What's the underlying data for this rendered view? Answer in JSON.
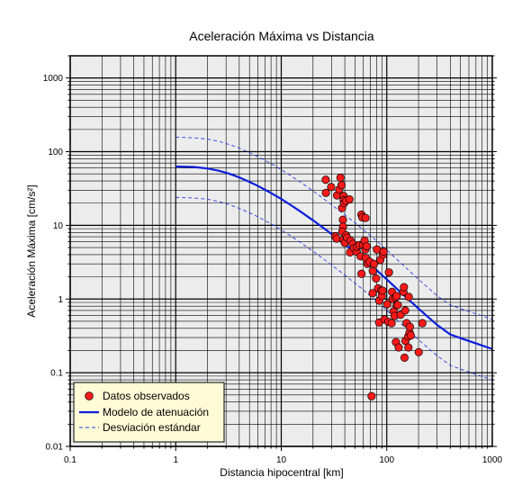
{
  "chart_data": {
    "type": "scatter",
    "title": "Aceleración Máxima vs Distancia",
    "xlabel": "Distancia hipocentral [km]",
    "ylabel": "Aceleración Máxima [cm/s²]",
    "xscale": "log",
    "yscale": "log",
    "xlim": [
      0.1,
      1000
    ],
    "ylim": [
      0.01,
      2000
    ],
    "grid": true,
    "background_color": "#ececec",
    "x_ticks": [
      {
        "value": 0.1,
        "label": "0.1"
      },
      {
        "value": 1,
        "label": "1"
      },
      {
        "value": 10,
        "label": "10"
      },
      {
        "value": 100,
        "label": "100"
      },
      {
        "value": 1000,
        "label": "1000"
      }
    ],
    "y_ticks": [
      {
        "value": 0.01,
        "label": "0.01"
      },
      {
        "value": 0.1,
        "label": "0.1"
      },
      {
        "value": 1,
        "label": "1"
      },
      {
        "value": 10,
        "label": "10"
      },
      {
        "value": 100,
        "label": "100"
      },
      {
        "value": 1000,
        "label": "1000"
      }
    ],
    "legend": {
      "placement": "bottom-left",
      "background": "#fffbd6",
      "entries": [
        {
          "label": "Datos observados",
          "kind": "marker",
          "color": "#ff1a1a"
        },
        {
          "label": "Modelo de atenuación",
          "kind": "line",
          "color": "#0a1edc"
        },
        {
          "label": "Desviación estándar",
          "kind": "dashed",
          "color": "#2a3ce6"
        }
      ]
    },
    "series": [
      {
        "name": "Datos observados",
        "kind": "scatter",
        "color": "#ff1a1a",
        "points": [
          [
            26.4,
            41.6
          ],
          [
            26.5,
            27.6
          ],
          [
            29.7,
            33.1
          ],
          [
            32.5,
            7.1
          ],
          [
            33.5,
            6.6
          ],
          [
            33.8,
            25.5
          ],
          [
            35.5,
            30.7
          ],
          [
            36.4,
            44.3
          ],
          [
            37.3,
            35.2
          ],
          [
            37.7,
            17.2
          ],
          [
            38.4,
            11.9
          ],
          [
            38.5,
            9.6
          ],
          [
            39.0,
            25.1
          ],
          [
            39.0,
            22.0
          ],
          [
            39.4,
            20.0
          ],
          [
            37.9,
            8.2
          ],
          [
            38.7,
            6.4
          ],
          [
            40.0,
            5.8
          ],
          [
            41.2,
            7.3
          ],
          [
            42.1,
            6.8
          ],
          [
            41.0,
            21.5
          ],
          [
            44.3,
            22.5
          ],
          [
            45.4,
            6.2
          ],
          [
            44.9,
            4.3
          ],
          [
            47.6,
            5.6
          ],
          [
            48.8,
            4.9
          ],
          [
            51.8,
            4.4
          ],
          [
            52.2,
            5.1
          ],
          [
            54.9,
            5.4
          ],
          [
            56.5,
            3.8
          ],
          [
            57.5,
            14.0
          ],
          [
            58.8,
            12.8
          ],
          [
            59.3,
            5.4
          ],
          [
            57.6,
            2.2
          ],
          [
            61.6,
            6.2
          ],
          [
            62.7,
            4.7
          ],
          [
            62.9,
            12.6
          ],
          [
            64.4,
            5.2
          ],
          [
            63.3,
            3.6
          ],
          [
            65.8,
            3.0
          ],
          [
            69.0,
            3.2
          ],
          [
            71.8,
            0.048
          ],
          [
            73.7,
            2.4
          ],
          [
            73.5,
            1.2
          ],
          [
            75.6,
            3.0
          ],
          [
            79.2,
            1.9
          ],
          [
            80.7,
            4.7
          ],
          [
            82.6,
            1.4
          ],
          [
            84.7,
            0.48
          ],
          [
            85.0,
            0.95
          ],
          [
            86.9,
            3.4
          ],
          [
            88.5,
            1.3
          ],
          [
            89.8,
            1.1
          ],
          [
            91.1,
            1.3
          ],
          [
            92.2,
            4.0
          ],
          [
            93.2,
            4.4
          ],
          [
            95.2,
            0.53
          ],
          [
            100.9,
            0.85
          ],
          [
            103.5,
            0.49
          ],
          [
            104.8,
            2.3
          ],
          [
            111.0,
            0.47
          ],
          [
            112.3,
            1.25
          ],
          [
            113.8,
            1.0
          ],
          [
            116.1,
            0.68
          ],
          [
            118.5,
            0.59
          ],
          [
            120.8,
            1.05
          ],
          [
            122.2,
            0.26
          ],
          [
            124.1,
            0.82
          ],
          [
            124.3,
            1.1
          ],
          [
            127.2,
            0.83
          ],
          [
            129.7,
            0.22
          ],
          [
            135.1,
            0.61
          ],
          [
            143.8,
            1.25
          ],
          [
            145.5,
            1.45
          ],
          [
            147.3,
            0.16
          ],
          [
            149.6,
            0.7
          ],
          [
            150.3,
            0.27
          ],
          [
            154.2,
            0.47
          ],
          [
            159.7,
            0.31
          ],
          [
            160.3,
            0.22
          ],
          [
            161.5,
            1.07
          ],
          [
            164.4,
            0.35
          ],
          [
            165.4,
            0.42
          ],
          [
            168.8,
            0.32
          ],
          [
            200.7,
            0.19
          ],
          [
            217.3,
            0.47
          ]
        ]
      },
      {
        "name": "Modelo de atenuación",
        "kind": "line",
        "color": "#0a1edc",
        "points": [
          [
            1,
            63
          ],
          [
            1.5,
            61.8
          ],
          [
            2,
            59.2
          ],
          [
            2.5,
            55.6
          ],
          [
            3,
            51.8
          ],
          [
            3.5,
            48.1
          ],
          [
            4,
            44.7
          ],
          [
            5,
            38.9
          ],
          [
            6,
            34.3
          ],
          [
            7,
            30.5
          ],
          [
            8,
            27.5
          ],
          [
            10,
            22.8
          ],
          [
            12,
            19.3
          ],
          [
            15,
            15.6
          ],
          [
            20,
            11.7
          ],
          [
            25,
            9.25
          ],
          [
            30,
            7.6
          ],
          [
            40,
            5.54
          ],
          [
            50,
            4.3
          ],
          [
            60,
            3.48
          ],
          [
            70,
            2.9
          ],
          [
            80,
            2.46
          ],
          [
            100,
            1.85
          ],
          [
            120,
            1.45
          ],
          [
            150,
            1.08
          ],
          [
            200,
            0.74
          ],
          [
            300,
            0.445
          ],
          [
            400,
            0.33
          ],
          [
            500,
            0.295
          ],
          [
            700,
            0.25
          ],
          [
            1000,
            0.21
          ]
        ]
      },
      {
        "name": "Desviación estándar (superior)",
        "kind": "dashed",
        "color": "#2a3ce6",
        "points": [
          [
            1,
            157
          ],
          [
            1.5,
            154
          ],
          [
            2,
            148
          ],
          [
            2.5,
            139
          ],
          [
            3,
            129
          ],
          [
            3.5,
            120
          ],
          [
            4,
            112
          ],
          [
            5,
            97.2
          ],
          [
            6,
            85.8
          ],
          [
            7,
            76.3
          ],
          [
            8,
            68.8
          ],
          [
            10,
            57
          ],
          [
            12,
            48.3
          ],
          [
            15,
            39
          ],
          [
            20,
            29.3
          ],
          [
            25,
            23.1
          ],
          [
            30,
            19
          ],
          [
            40,
            13.9
          ],
          [
            50,
            10.8
          ],
          [
            60,
            8.7
          ],
          [
            70,
            7.25
          ],
          [
            80,
            6.15
          ],
          [
            100,
            4.63
          ],
          [
            120,
            3.63
          ],
          [
            150,
            2.7
          ],
          [
            200,
            1.85
          ],
          [
            300,
            1.11
          ],
          [
            400,
            0.83
          ],
          [
            500,
            0.74
          ],
          [
            700,
            0.63
          ],
          [
            1000,
            0.53
          ]
        ]
      },
      {
        "name": "Desviación estándar (inferior)",
        "kind": "dashed",
        "color": "#2a3ce6",
        "points": [
          [
            1,
            24
          ],
          [
            1.5,
            23.5
          ],
          [
            2,
            22.6
          ],
          [
            2.5,
            21.2
          ],
          [
            3,
            19.7
          ],
          [
            3.5,
            18.3
          ],
          [
            4,
            17
          ],
          [
            5,
            14.8
          ],
          [
            6,
            13.1
          ],
          [
            7,
            11.6
          ],
          [
            8,
            10.5
          ],
          [
            10,
            8.7
          ],
          [
            12,
            7.35
          ],
          [
            15,
            5.94
          ],
          [
            20,
            4.46
          ],
          [
            25,
            3.52
          ],
          [
            30,
            2.9
          ],
          [
            40,
            2.11
          ],
          [
            50,
            1.64
          ],
          [
            60,
            1.33
          ],
          [
            70,
            1.1
          ],
          [
            80,
            0.94
          ],
          [
            100,
            0.7
          ],
          [
            120,
            0.55
          ],
          [
            150,
            0.41
          ],
          [
            200,
            0.28
          ],
          [
            300,
            0.17
          ],
          [
            400,
            0.126
          ],
          [
            500,
            0.112
          ],
          [
            700,
            0.095
          ],
          [
            1000,
            0.08
          ]
        ]
      }
    ]
  }
}
